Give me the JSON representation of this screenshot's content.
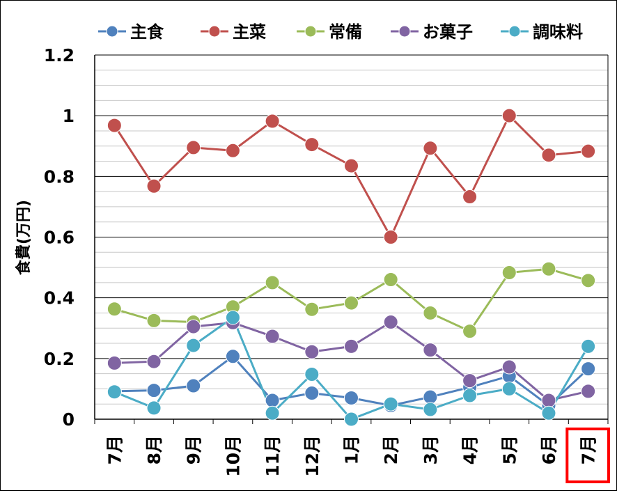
{
  "chart_data": {
    "type": "line",
    "ylabel": "食費(万円)",
    "ylim": [
      0,
      1.2
    ],
    "y_major_ticks": [
      "0",
      "0.2",
      "0.4",
      "0.6",
      "0.8",
      "1",
      "1.2"
    ],
    "grid": "horizontal major and minor gridlines",
    "legend_position": "top",
    "categories": [
      "7月",
      "8月",
      "9月",
      "10月",
      "11月",
      "12月",
      "1月",
      "2月",
      "3月",
      "4月",
      "5月",
      "6月",
      "7月"
    ],
    "highlight": {
      "category_index": 12,
      "color": "#ff0000"
    },
    "series": [
      {
        "name": "主食",
        "color": "#4f81bd",
        "values": [
          0.092,
          0.095,
          0.11,
          0.207,
          0.062,
          0.086,
          0.07,
          0.045,
          0.073,
          0.105,
          0.142,
          0.045,
          0.166
        ]
      },
      {
        "name": "主菜",
        "color": "#c0504d",
        "values": [
          0.968,
          0.768,
          0.895,
          0.885,
          0.982,
          0.905,
          0.835,
          0.6,
          0.893,
          0.733,
          1.0,
          0.87,
          0.883
        ]
      },
      {
        "name": "常備",
        "color": "#9bbb59",
        "values": [
          0.363,
          0.325,
          0.32,
          0.37,
          0.45,
          0.362,
          0.383,
          0.46,
          0.35,
          0.29,
          0.483,
          0.495,
          0.457
        ]
      },
      {
        "name": "お菓子",
        "color": "#8064a2",
        "values": [
          0.185,
          0.19,
          0.305,
          0.318,
          0.273,
          0.222,
          0.24,
          0.32,
          0.228,
          0.127,
          0.172,
          0.062,
          0.092
        ]
      },
      {
        "name": "調味料",
        "color": "#4bacc6",
        "values": [
          0.09,
          0.037,
          0.243,
          0.335,
          0.02,
          0.148,
          0.0,
          0.05,
          0.032,
          0.078,
          0.1,
          0.02,
          0.24
        ]
      }
    ]
  }
}
